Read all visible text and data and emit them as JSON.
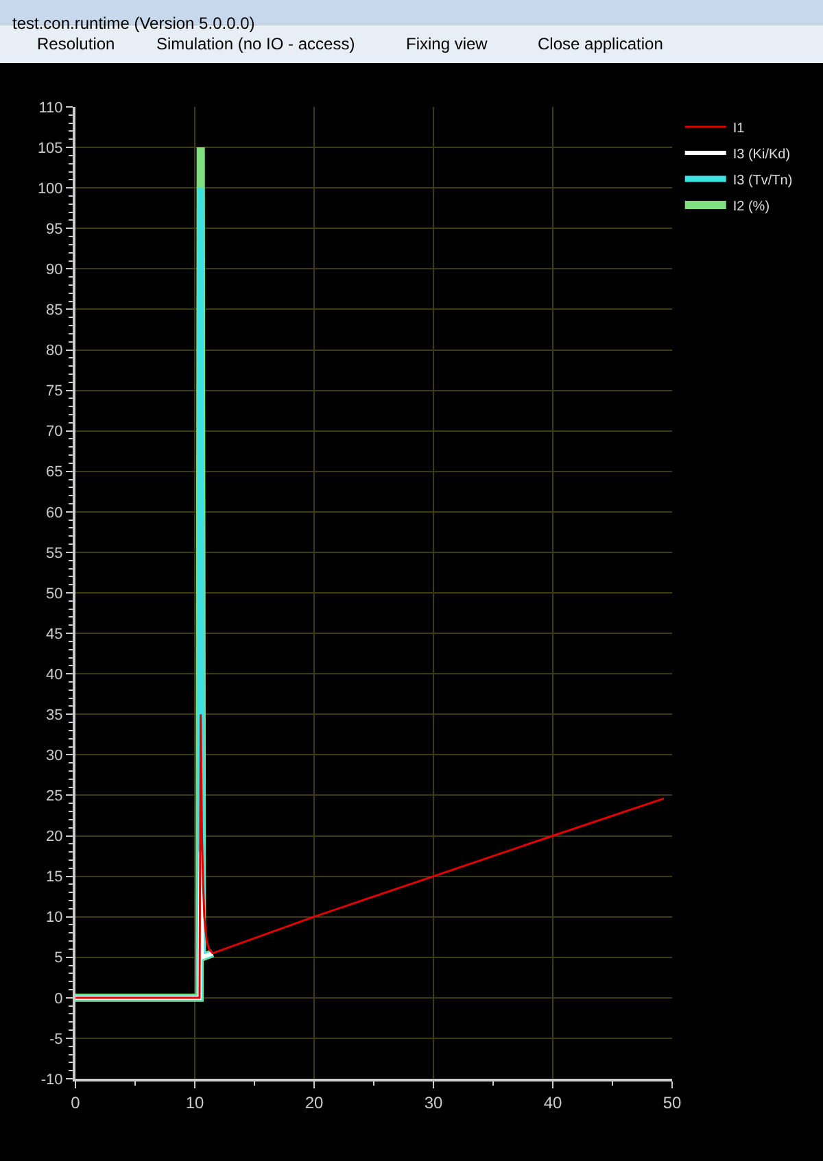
{
  "chart_data": {
    "type": "line",
    "title": "test.con.runtime (Version 5.0.0.0)",
    "annotations": [
      "Resolution",
      "Simulation (no IO - access)",
      "Fixing view",
      "Close application"
    ],
    "series": [
      {
        "name": "I2 (%)",
        "color": "#80e080",
        "x": [
          0,
          10.4,
          10.5,
          10.6,
          11.5
        ],
        "values": [
          0,
          0,
          105,
          5,
          5.5
        ]
      },
      {
        "name": "I3 (Tv/Tn)",
        "color": "#40e0e0",
        "x": [
          0,
          10.4,
          10.5,
          10.6,
          11.5
        ],
        "values": [
          0,
          0,
          100,
          5,
          5.5
        ]
      },
      {
        "name": "I3 (Ki/Kd)",
        "color": "#ffffff",
        "x": [
          0,
          10.4,
          10.5,
          10.6,
          11.5
        ],
        "values": [
          0,
          0,
          18,
          5,
          5.5
        ]
      },
      {
        "name": "I1",
        "color": "#e00000",
        "x": [
          0,
          10.4,
          10.5,
          10.6,
          10.7,
          10.8,
          11.0,
          11.2,
          11.5,
          20,
          30,
          40,
          49.3
        ],
        "values": [
          0,
          0,
          35,
          20,
          14,
          10,
          7,
          6,
          5.5,
          10,
          15,
          20,
          24.6
        ]
      }
    ],
    "xlim": [
      0,
      50
    ],
    "xticks": [
      0,
      10,
      20,
      30,
      40,
      50
    ],
    "ylim": [
      -10,
      110
    ],
    "yticks": [
      -10,
      -5,
      0,
      5,
      10,
      15,
      20,
      25,
      30,
      35,
      40,
      45,
      50,
      55,
      60,
      65,
      70,
      75,
      80,
      85,
      90,
      95,
      100,
      105,
      110
    ],
    "grid": true,
    "legend": "top right",
    "marker": "none",
    "line_style": "solid"
  }
}
